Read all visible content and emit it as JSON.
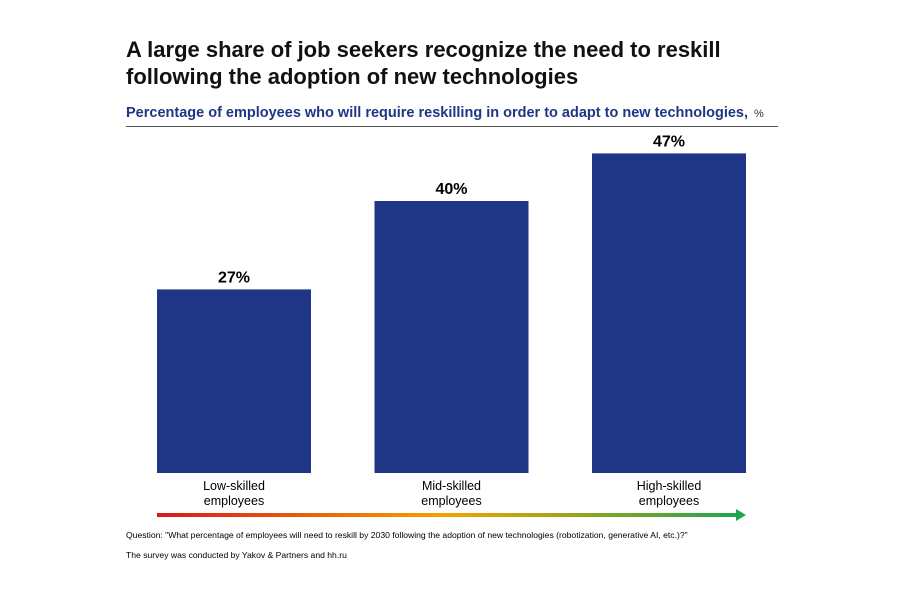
{
  "title": "A large share of job seekers recognize the need to reskill following the adoption of new technologies",
  "subtitle": "Percentage of employees who will require reskilling in order to adapt to new technologies,",
  "unit": "%",
  "footnotes": {
    "question": "Question: \"What percentage of employees will need to reskill by 2030 following the adoption of new technologies (robotization, generative AI, etc.)?\"",
    "source": "The survey was conducted by Yakov & Partners and hh.ru"
  },
  "colors": {
    "bar": "#1f3585",
    "arrow_gradient": [
      "#d7191c",
      "#f5a200",
      "#1fa64a"
    ]
  },
  "chart_data": {
    "type": "bar",
    "categories": [
      [
        "Low-skilled",
        "employees"
      ],
      [
        "Mid-skilled",
        "employees"
      ],
      [
        "High-skilled",
        "employees"
      ]
    ],
    "values": [
      27,
      40,
      47
    ],
    "value_labels": [
      "27%",
      "40%",
      "47%"
    ],
    "ylim": [
      0,
      50
    ],
    "grid": false,
    "legend": "none"
  }
}
